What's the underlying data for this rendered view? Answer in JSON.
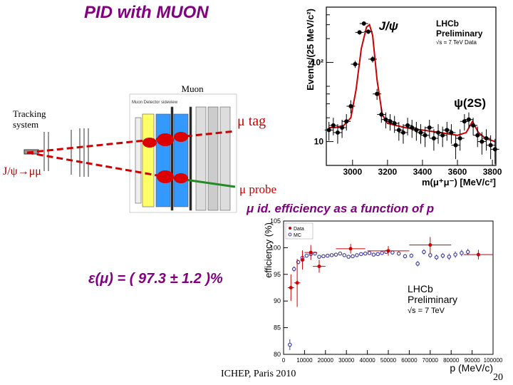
{
  "slide": {
    "title": "PID with MUON",
    "tracking_label": "Tracking\nsystem",
    "muon_label": "Muon\nsystem",
    "mu_tag": "μ tag",
    "jpsi_decay": "J/ψ→μμ",
    "mu_probe": "μ probe",
    "eff_title": "μ id. efficiency as a function of p",
    "eff_result": "ε(μ) = ( 97.3 ± 1.2 )%",
    "footer": "ICHEP, Paris 2010",
    "page_number": "20",
    "detector_caption": "Muon Detector sideview"
  },
  "chart_data": [
    {
      "type": "line",
      "title": "",
      "xlabel": "m(μ⁺μ⁻) [MeV/c²]",
      "ylabel": "Events/(25 MeV/c²)",
      "xlim": [
        2850,
        3820
      ],
      "ylim": [
        5,
        500
      ],
      "yscale": "log",
      "x_ticks": [
        "3000",
        "3200",
        "3400",
        "3600",
        "3800"
      ],
      "y_ticks": [
        "10",
        "10²"
      ],
      "annotations": [
        "J/ψ",
        "ψ(2S)"
      ],
      "legend": [
        "LHCb",
        "Preliminary",
        "√s = 7 TeV Data"
      ],
      "series": [
        {
          "name": "Data",
          "x": [
            2865,
            2890,
            2915,
            2940,
            2965,
            2990,
            3015,
            3040,
            3065,
            3090,
            3115,
            3140,
            3165,
            3190,
            3215,
            3240,
            3265,
            3290,
            3315,
            3340,
            3365,
            3390,
            3415,
            3440,
            3465,
            3490,
            3515,
            3540,
            3565,
            3590,
            3615,
            3640,
            3665,
            3690,
            3715,
            3740,
            3765,
            3790,
            3815
          ],
          "y": [
            14,
            16,
            13,
            15,
            18,
            28,
            95,
            240,
            310,
            245,
            110,
            40,
            22,
            19,
            18,
            17,
            14,
            13,
            16,
            15,
            14,
            13,
            12,
            15,
            11,
            13,
            12,
            14,
            13,
            9,
            11,
            18,
            19,
            16,
            12,
            10,
            11,
            9,
            8
          ]
        },
        {
          "name": "Fit",
          "x": [
            2865,
            2900,
            2950,
            2990,
            3020,
            3050,
            3080,
            3097,
            3115,
            3140,
            3170,
            3200,
            3300,
            3400,
            3500,
            3600,
            3650,
            3686,
            3720,
            3760,
            3815
          ],
          "y": [
            15,
            15,
            16,
            20,
            45,
            150,
            280,
            300,
            220,
            60,
            22,
            17,
            15,
            14,
            13,
            12,
            13,
            18,
            13,
            11,
            10
          ]
        }
      ]
    },
    {
      "type": "scatter",
      "title": "",
      "xlabel": "p (MeV/c)",
      "ylabel": "efficiency (%)",
      "xlim": [
        0,
        100000
      ],
      "ylim": [
        80,
        105
      ],
      "x_ticks": [
        "0",
        "10000",
        "20000",
        "30000",
        "40000",
        "50000",
        "60000",
        "70000",
        "80000",
        "90000",
        "100000"
      ],
      "y_ticks": [
        "80",
        "85",
        "90",
        "95",
        "100",
        "105"
      ],
      "legend": [
        "Data",
        "MC"
      ],
      "annotations": [
        "LHCb",
        "Preliminary",
        "√s = 7 TeV"
      ],
      "series": [
        {
          "name": "Data",
          "x": [
            3500,
            6500,
            9000,
            13000,
            17000,
            32000,
            50000,
            70000,
            93000
          ],
          "y": [
            92.5,
            93.4,
            97.7,
            99.1,
            96.5,
            99.8,
            99.4,
            100.5,
            98.7
          ],
          "yerr": [
            2.5,
            4.5,
            1.8,
            1.4,
            1.2,
            0.9,
            0.9,
            1.5,
            0.9
          ]
        },
        {
          "name": "MC",
          "x": [
            3000,
            5000,
            7000,
            9000,
            11000,
            13000,
            15000,
            17000,
            19000,
            21000,
            23000,
            25000,
            27000,
            29000,
            31000,
            33000,
            35000,
            37000,
            39000,
            41000,
            43000,
            45000,
            47000,
            49000,
            52000,
            55000,
            58000,
            61000,
            64000,
            67000,
            70000,
            73000,
            76000,
            79000,
            82000,
            85000,
            88000
          ],
          "y": [
            81.8,
            96.0,
            97.3,
            98.1,
            98.5,
            98.8,
            98.9,
            98.3,
            98.4,
            98.5,
            98.6,
            98.7,
            98.9,
            98.6,
            98.3,
            98.4,
            98.6,
            98.8,
            98.9,
            99.0,
            98.7,
            98.8,
            99.0,
            99.2,
            99.1,
            98.9,
            98.4,
            98.5,
            97.0,
            99.2,
            98.6,
            98.2,
            98.5,
            98.3,
            98.7,
            99.0,
            99.2
          ],
          "yerr": [
            1.0,
            0.5,
            0.4,
            0.4,
            0.3,
            0.3,
            0.3,
            0.3,
            0.3,
            0.3,
            0.3,
            0.3,
            0.3,
            0.3,
            0.3,
            0.3,
            0.3,
            0.3,
            0.3,
            0.3,
            0.3,
            0.3,
            0.3,
            0.3,
            0.4,
            0.4,
            0.4,
            0.4,
            0.5,
            0.5,
            0.5,
            0.5,
            0.5,
            0.6,
            0.6,
            0.6,
            0.6
          ]
        }
      ]
    }
  ],
  "colors": {
    "title": "#800080",
    "tag_red": "#cc0000",
    "data_red": "#cc0000",
    "mc_blue": "#4040a0",
    "fit_red": "#cc0000",
    "chamber_blue": "#3399ff",
    "chamber_yellow": "#ffff66",
    "probe_green": "#228b22"
  }
}
